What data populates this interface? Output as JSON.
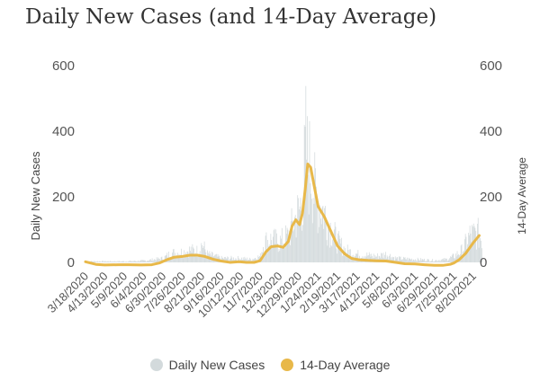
{
  "colors": {
    "cases": "#d3dadc",
    "average": "#e8b849"
  },
  "chart_data": {
    "type": "bar+line",
    "title": "Daily New Cases (and 14-Day Average)",
    "ylabel_left": "Daily New Cases",
    "ylabel_right": "14-Day Average",
    "ylim": [
      0,
      600
    ],
    "yticks": [
      "0",
      "200",
      "400",
      "600"
    ],
    "grid": false,
    "legend_position": "bottom",
    "x_tick_labels": [
      "3/18/2020",
      "4/13/2020",
      "5/9/2020",
      "6/4/2020",
      "6/30/2020",
      "7/26/2020",
      "8/21/2020",
      "9/16/2020",
      "10/12/2020",
      "11/7/2020",
      "12/3/2020",
      "12/29/2020",
      "1/24/2021",
      "2/19/2021",
      "3/17/2021",
      "4/12/2021",
      "5/8/2021",
      "6/3/2021",
      "6/29/2021",
      "7/25/2021",
      "8/20/2021"
    ],
    "x_range": [
      "3/18/2020",
      "8/31/2021"
    ],
    "series": [
      {
        "name": "14-Day Average",
        "type": "line",
        "points": [
          [
            "3/18/2020",
            2
          ],
          [
            "4/1/2020",
            -6
          ],
          [
            "4/13/2020",
            -8
          ],
          [
            "5/1/2020",
            -7
          ],
          [
            "5/15/2020",
            -7
          ],
          [
            "6/1/2020",
            -8
          ],
          [
            "6/15/2020",
            -7
          ],
          [
            "6/25/2020",
            -2
          ],
          [
            "7/5/2020",
            8
          ],
          [
            "7/15/2020",
            16
          ],
          [
            "7/26/2020",
            18
          ],
          [
            "8/5/2020",
            22
          ],
          [
            "8/15/2020",
            22
          ],
          [
            "8/25/2020",
            18
          ],
          [
            "9/5/2020",
            10
          ],
          [
            "9/16/2020",
            4
          ],
          [
            "9/28/2020",
            0
          ],
          [
            "10/10/2020",
            2
          ],
          [
            "10/20/2020",
            0
          ],
          [
            "10/30/2020",
            0
          ],
          [
            "11/7/2020",
            5
          ],
          [
            "11/15/2020",
            32
          ],
          [
            "11/22/2020",
            48
          ],
          [
            "12/1/2020",
            50
          ],
          [
            "12/8/2020",
            46
          ],
          [
            "12/15/2020",
            64
          ],
          [
            "12/20/2020",
            110
          ],
          [
            "12/25/2020",
            130
          ],
          [
            "12/30/2020",
            115
          ],
          [
            "1/3/2021",
            150
          ],
          [
            "1/7/2021",
            230
          ],
          [
            "1/10/2021",
            300
          ],
          [
            "1/14/2021",
            290
          ],
          [
            "1/18/2021",
            240
          ],
          [
            "1/24/2021",
            170
          ],
          [
            "2/1/2021",
            140
          ],
          [
            "2/10/2021",
            95
          ],
          [
            "2/19/2021",
            50
          ],
          [
            "3/1/2021",
            25
          ],
          [
            "3/10/2021",
            12
          ],
          [
            "3/20/2021",
            8
          ],
          [
            "4/1/2021",
            6
          ],
          [
            "4/12/2021",
            5
          ],
          [
            "4/25/2021",
            4
          ],
          [
            "5/8/2021",
            0
          ],
          [
            "5/20/2021",
            -4
          ],
          [
            "6/3/2021",
            -5
          ],
          [
            "6/15/2021",
            -7
          ],
          [
            "6/29/2021",
            -9
          ],
          [
            "7/10/2021",
            -9
          ],
          [
            "7/20/2021",
            -6
          ],
          [
            "7/25/2021",
            -2
          ],
          [
            "8/1/2021",
            8
          ],
          [
            "8/10/2021",
            28
          ],
          [
            "8/20/2021",
            60
          ],
          [
            "8/28/2021",
            82
          ]
        ]
      },
      {
        "name": "Daily New Cases",
        "type": "bar",
        "envelope": [
          [
            "3/18/2020",
            5
          ],
          [
            "4/13/2020",
            5
          ],
          [
            "5/9/2020",
            5
          ],
          [
            "6/4/2020",
            8
          ],
          [
            "6/30/2020",
            20
          ],
          [
            "7/10/2020",
            45
          ],
          [
            "7/26/2020",
            50
          ],
          [
            "8/5/2020",
            60
          ],
          [
            "8/15/2020",
            55
          ],
          [
            "8/21/2020",
            90
          ],
          [
            "8/28/2020",
            40
          ],
          [
            "9/16/2020",
            20
          ],
          [
            "10/12/2020",
            20
          ],
          [
            "10/25/2020",
            15
          ],
          [
            "11/7/2020",
            30
          ],
          [
            "11/12/2020",
            100
          ],
          [
            "11/22/2020",
            110
          ],
          [
            "12/3/2020",
            100
          ],
          [
            "12/15/2020",
            130
          ],
          [
            "12/22/2020",
            200
          ],
          [
            "12/29/2020",
            250
          ],
          [
            "1/3/2021",
            320
          ],
          [
            "1/7/2021",
            570
          ],
          [
            "1/10/2021",
            460
          ],
          [
            "1/14/2021",
            480
          ],
          [
            "1/18/2021",
            350
          ],
          [
            "1/24/2021",
            300
          ],
          [
            "2/1/2021",
            240
          ],
          [
            "2/10/2021",
            160
          ],
          [
            "2/19/2021",
            100
          ],
          [
            "3/1/2021",
            60
          ],
          [
            "3/17/2021",
            40
          ],
          [
            "4/12/2021",
            30
          ],
          [
            "4/25/2021",
            40
          ],
          [
            "5/8/2021",
            20
          ],
          [
            "6/3/2021",
            15
          ],
          [
            "6/29/2021",
            10
          ],
          [
            "7/15/2021",
            15
          ],
          [
            "7/25/2021",
            30
          ],
          [
            "8/5/2021",
            60
          ],
          [
            "8/15/2021",
            130
          ],
          [
            "8/25/2021",
            140
          ],
          [
            "8/31/2021",
            120
          ]
        ]
      }
    ]
  }
}
